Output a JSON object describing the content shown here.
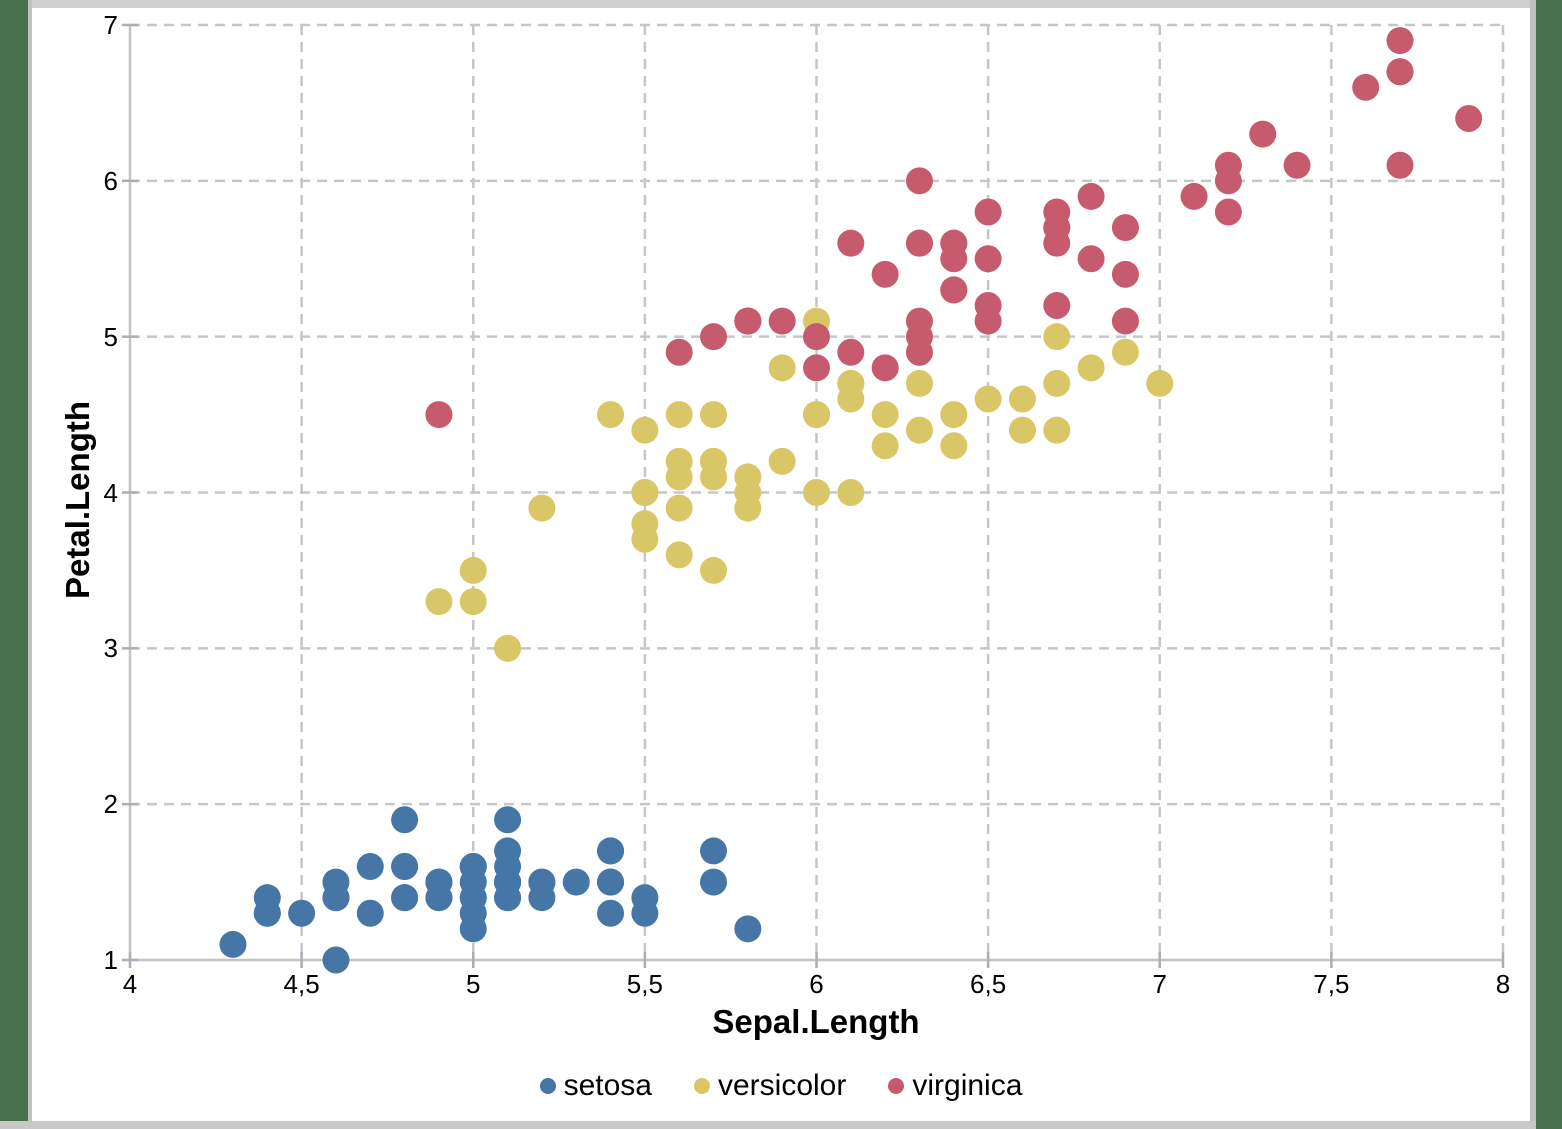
{
  "frame": {
    "sheet_background_color": "#47704d",
    "border_line_color": "#c0c0c0",
    "border_top_color": "#d0d0d0",
    "border_bottom_color": "#c8c8c8",
    "panel_background": "#ffffff"
  },
  "chart_data": {
    "type": "scatter",
    "xlabel": "Sepal.Length",
    "ylabel": "Petal.Length",
    "xlim": [
      4,
      8
    ],
    "ylim": [
      1,
      7
    ],
    "grid": true,
    "gridline_style": "dashed",
    "legend_position": "bottom",
    "x_ticks": [
      {
        "value": 4,
        "label": "4"
      },
      {
        "value": 4.5,
        "label": "4,5"
      },
      {
        "value": 5,
        "label": "5"
      },
      {
        "value": 5.5,
        "label": "5,5"
      },
      {
        "value": 6,
        "label": "6"
      },
      {
        "value": 6.5,
        "label": "6,5"
      },
      {
        "value": 7,
        "label": "7"
      },
      {
        "value": 7.5,
        "label": "7,5"
      },
      {
        "value": 8,
        "label": "8"
      }
    ],
    "y_ticks": [
      {
        "value": 1,
        "label": "1"
      },
      {
        "value": 2,
        "label": "2"
      },
      {
        "value": 3,
        "label": "3"
      },
      {
        "value": 4,
        "label": "4"
      },
      {
        "value": 5,
        "label": "5"
      },
      {
        "value": 6,
        "label": "6"
      },
      {
        "value": 7,
        "label": "7"
      }
    ],
    "series": [
      {
        "name": "setosa",
        "color": "#4576a6",
        "points": [
          [
            5.1,
            1.4
          ],
          [
            4.9,
            1.4
          ],
          [
            4.7,
            1.3
          ],
          [
            4.6,
            1.5
          ],
          [
            5.0,
            1.4
          ],
          [
            5.4,
            1.7
          ],
          [
            4.6,
            1.4
          ],
          [
            5.0,
            1.5
          ],
          [
            4.4,
            1.4
          ],
          [
            4.9,
            1.5
          ],
          [
            5.4,
            1.5
          ],
          [
            4.8,
            1.6
          ],
          [
            4.8,
            1.4
          ],
          [
            4.3,
            1.1
          ],
          [
            5.8,
            1.2
          ],
          [
            5.7,
            1.5
          ],
          [
            5.4,
            1.3
          ],
          [
            5.1,
            1.4
          ],
          [
            5.7,
            1.7
          ],
          [
            5.1,
            1.5
          ],
          [
            5.4,
            1.7
          ],
          [
            5.1,
            1.5
          ],
          [
            4.6,
            1.0
          ],
          [
            5.1,
            1.7
          ],
          [
            4.8,
            1.9
          ],
          [
            5.0,
            1.6
          ],
          [
            5.0,
            1.6
          ],
          [
            5.2,
            1.5
          ],
          [
            5.2,
            1.4
          ],
          [
            4.7,
            1.6
          ],
          [
            4.8,
            1.6
          ],
          [
            5.4,
            1.5
          ],
          [
            5.2,
            1.5
          ],
          [
            5.5,
            1.4
          ],
          [
            4.9,
            1.5
          ],
          [
            5.0,
            1.2
          ],
          [
            5.5,
            1.3
          ],
          [
            4.9,
            1.4
          ],
          [
            4.4,
            1.3
          ],
          [
            5.1,
            1.5
          ],
          [
            5.0,
            1.3
          ],
          [
            4.5,
            1.3
          ],
          [
            4.4,
            1.3
          ],
          [
            5.0,
            1.6
          ],
          [
            5.1,
            1.9
          ],
          [
            4.8,
            1.4
          ],
          [
            5.1,
            1.6
          ],
          [
            4.6,
            1.4
          ],
          [
            5.3,
            1.5
          ],
          [
            5.0,
            1.4
          ]
        ]
      },
      {
        "name": "versicolor",
        "color": "#d9c667",
        "points": [
          [
            7.0,
            4.7
          ],
          [
            6.4,
            4.5
          ],
          [
            6.9,
            4.9
          ],
          [
            5.5,
            4.0
          ],
          [
            6.5,
            4.6
          ],
          [
            5.7,
            4.5
          ],
          [
            6.3,
            4.7
          ],
          [
            4.9,
            3.3
          ],
          [
            6.6,
            4.6
          ],
          [
            5.2,
            3.9
          ],
          [
            5.0,
            3.5
          ],
          [
            5.9,
            4.2
          ],
          [
            6.0,
            4.0
          ],
          [
            6.1,
            4.7
          ],
          [
            5.6,
            3.6
          ],
          [
            6.7,
            4.4
          ],
          [
            5.6,
            4.5
          ],
          [
            5.8,
            4.1
          ],
          [
            6.2,
            4.5
          ],
          [
            5.6,
            3.9
          ],
          [
            5.9,
            4.8
          ],
          [
            6.1,
            4.0
          ],
          [
            6.3,
            4.9
          ],
          [
            6.1,
            4.7
          ],
          [
            6.4,
            4.3
          ],
          [
            6.6,
            4.4
          ],
          [
            6.8,
            4.8
          ],
          [
            6.7,
            5.0
          ],
          [
            6.0,
            4.5
          ],
          [
            5.7,
            3.5
          ],
          [
            5.5,
            3.8
          ],
          [
            5.5,
            3.7
          ],
          [
            5.8,
            3.9
          ],
          [
            6.0,
            5.1
          ],
          [
            5.4,
            4.5
          ],
          [
            6.0,
            4.5
          ],
          [
            6.7,
            4.7
          ],
          [
            6.3,
            4.4
          ],
          [
            5.6,
            4.1
          ],
          [
            5.5,
            4.0
          ],
          [
            5.5,
            4.4
          ],
          [
            6.1,
            4.6
          ],
          [
            5.8,
            4.0
          ],
          [
            5.0,
            3.3
          ],
          [
            5.6,
            4.2
          ],
          [
            5.7,
            4.2
          ],
          [
            5.7,
            4.2
          ],
          [
            6.2,
            4.3
          ],
          [
            5.1,
            3.0
          ],
          [
            5.7,
            4.1
          ]
        ]
      },
      {
        "name": "virginica",
        "color": "#c75b6e",
        "points": [
          [
            6.3,
            6.0
          ],
          [
            5.8,
            5.1
          ],
          [
            7.1,
            5.9
          ],
          [
            6.3,
            5.6
          ],
          [
            6.5,
            5.8
          ],
          [
            7.6,
            6.6
          ],
          [
            4.9,
            4.5
          ],
          [
            7.3,
            6.3
          ],
          [
            6.7,
            5.8
          ],
          [
            7.2,
            6.1
          ],
          [
            6.5,
            5.1
          ],
          [
            6.4,
            5.3
          ],
          [
            6.8,
            5.5
          ],
          [
            5.7,
            5.0
          ],
          [
            5.8,
            5.1
          ],
          [
            6.4,
            5.3
          ],
          [
            6.5,
            5.5
          ],
          [
            7.7,
            6.7
          ],
          [
            7.7,
            6.9
          ],
          [
            6.0,
            5.0
          ],
          [
            6.9,
            5.7
          ],
          [
            5.6,
            4.9
          ],
          [
            7.7,
            6.7
          ],
          [
            6.3,
            4.9
          ],
          [
            6.7,
            5.7
          ],
          [
            7.2,
            6.0
          ],
          [
            6.2,
            4.8
          ],
          [
            6.1,
            4.9
          ],
          [
            6.4,
            5.6
          ],
          [
            7.2,
            5.8
          ],
          [
            7.4,
            6.1
          ],
          [
            7.9,
            6.4
          ],
          [
            6.4,
            5.6
          ],
          [
            6.3,
            5.1
          ],
          [
            6.1,
            5.6
          ],
          [
            7.7,
            6.1
          ],
          [
            6.3,
            5.6
          ],
          [
            6.4,
            5.5
          ],
          [
            6.0,
            4.8
          ],
          [
            6.9,
            5.4
          ],
          [
            6.7,
            5.6
          ],
          [
            6.9,
            5.1
          ],
          [
            5.8,
            5.1
          ],
          [
            6.8,
            5.9
          ],
          [
            6.7,
            5.7
          ],
          [
            6.7,
            5.2
          ],
          [
            6.3,
            5.0
          ],
          [
            6.5,
            5.2
          ],
          [
            6.2,
            5.4
          ],
          [
            5.9,
            5.1
          ]
        ]
      }
    ]
  },
  "style": {
    "gridline_color": "#c6c6c6",
    "axis_line_color": "#c3c3c3",
    "tick_mark_color": "#a9aeb9",
    "marker_radius": 13.5,
    "legend_marker_radius": 8
  }
}
